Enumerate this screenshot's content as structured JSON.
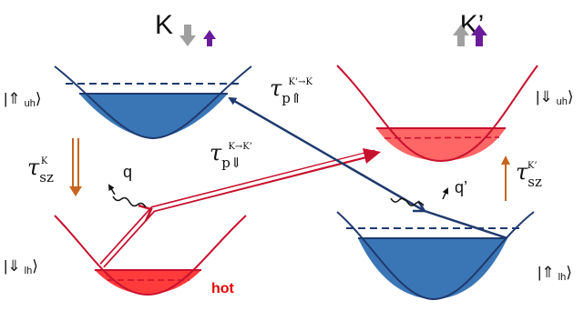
{
  "valleys": {
    "left": {
      "label": "K"
    },
    "right": {
      "label": "K’"
    }
  },
  "states": {
    "upper_left": {
      "arrow": "⇑",
      "sub": "uh"
    },
    "lower_left": {
      "arrow": "⇓",
      "sub": "lh"
    },
    "upper_right": {
      "arrow": "⇓",
      "sub": "uh"
    },
    "lower_right": {
      "arrow": "⇑",
      "sub": "lh"
    }
  },
  "rates": {
    "p_left": {
      "symbol": "τ",
      "sub": "p⇓",
      "sup": "K→K’"
    },
    "p_right": {
      "symbol": "τ",
      "sub": "p⇑",
      "sup": "K’→K"
    },
    "sz_left": {
      "symbol": "τ",
      "sub": "sz",
      "sup": "K"
    },
    "sz_right": {
      "symbol": "τ",
      "sub": "sz",
      "sup": "K’"
    }
  },
  "phonons": {
    "left": "q",
    "right": "q’"
  },
  "hot_label": "hot",
  "colors": {
    "band_blue": "#1f3a6e",
    "band_red": "#c8102e",
    "fill_blue": "#3a76b6",
    "fill_red": "#ff3b3b",
    "spin_gray": "#a0a0a0",
    "spin_purple": "#6a1b9a",
    "relax_orange": "#c8641e"
  }
}
